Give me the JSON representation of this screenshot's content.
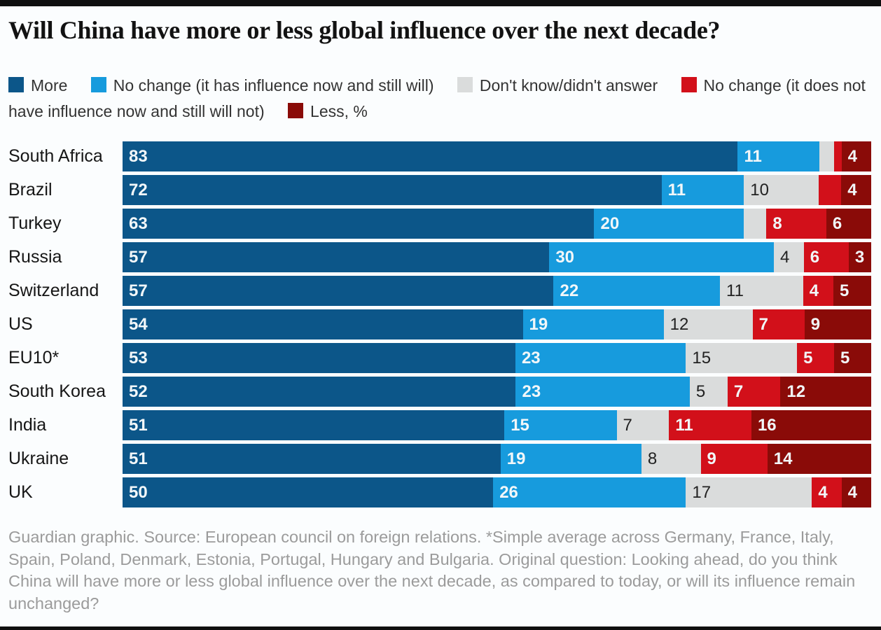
{
  "title": "Will China have more or less global influence over the next decade?",
  "legend": {
    "items": [
      {
        "key": "more",
        "label": "More",
        "color": "#0c5689"
      },
      {
        "key": "nochange-pos",
        "label": "No change (it has influence now and still will)",
        "color": "#179bdd"
      },
      {
        "key": "dontknow",
        "label": "Don't know/didn't answer",
        "color": "#dadcdc"
      },
      {
        "key": "nochange-neg",
        "label": "No change (it does not have influence now and still will not)",
        "color": "#d2101a"
      },
      {
        "key": "less",
        "label": "Less, %",
        "color": "#8a0b08"
      }
    ]
  },
  "chart_data": {
    "type": "bar",
    "orientation": "horizontal",
    "stacked": true,
    "units": "%",
    "xlim": [
      0,
      100
    ],
    "grid": false,
    "legend_position": "top",
    "categories": [
      "South Africa",
      "Brazil",
      "Turkey",
      "Russia",
      "Switzerland",
      "US",
      "EU10*",
      "South Korea",
      "India",
      "Ukraine",
      "UK"
    ],
    "series": [
      {
        "key": "more",
        "name": "More",
        "color": "#0c5689",
        "text": "light",
        "values": [
          83,
          72,
          63,
          57,
          57,
          54,
          53,
          52,
          51,
          51,
          50
        ]
      },
      {
        "key": "nochange-pos",
        "name": "No change (it has influence now and still will)",
        "color": "#179bdd",
        "text": "light",
        "values": [
          11,
          11,
          20,
          30,
          22,
          19,
          23,
          23,
          15,
          19,
          26
        ]
      },
      {
        "key": "dontknow",
        "name": "Don't know/didn't answer",
        "color": "#dadcdc",
        "text": "dark",
        "values": [
          2,
          10,
          3,
          4,
          11,
          12,
          15,
          5,
          7,
          8,
          17
        ],
        "labels": [
          null,
          "10",
          null,
          "4",
          "11",
          "12",
          "15",
          "5",
          "7",
          "8",
          "17"
        ]
      },
      {
        "key": "nochange-neg",
        "name": "No change (it does not have influence now and still will not)",
        "color": "#d2101a",
        "text": "light",
        "values": [
          1,
          3,
          8,
          6,
          4,
          7,
          5,
          7,
          11,
          9,
          4
        ],
        "labels": [
          null,
          null,
          "8",
          "6",
          "4",
          "7",
          "5",
          "7",
          "11",
          "9",
          "4"
        ]
      },
      {
        "key": "less",
        "name": "Less",
        "color": "#8a0b08",
        "text": "light",
        "values": [
          4,
          4,
          6,
          3,
          5,
          9,
          5,
          12,
          16,
          14,
          4
        ]
      }
    ]
  },
  "footer": "Guardian graphic. Source: European council on foreign relations. *Simple average across Germany, France, Italy, Spain, Poland, Denmark, Estonia, Portugal, Hungary and Bulgaria. Original question: Looking ahead, do you think China will have more or less global influence over the next decade, as compared to today, or will its influence remain unchanged?"
}
